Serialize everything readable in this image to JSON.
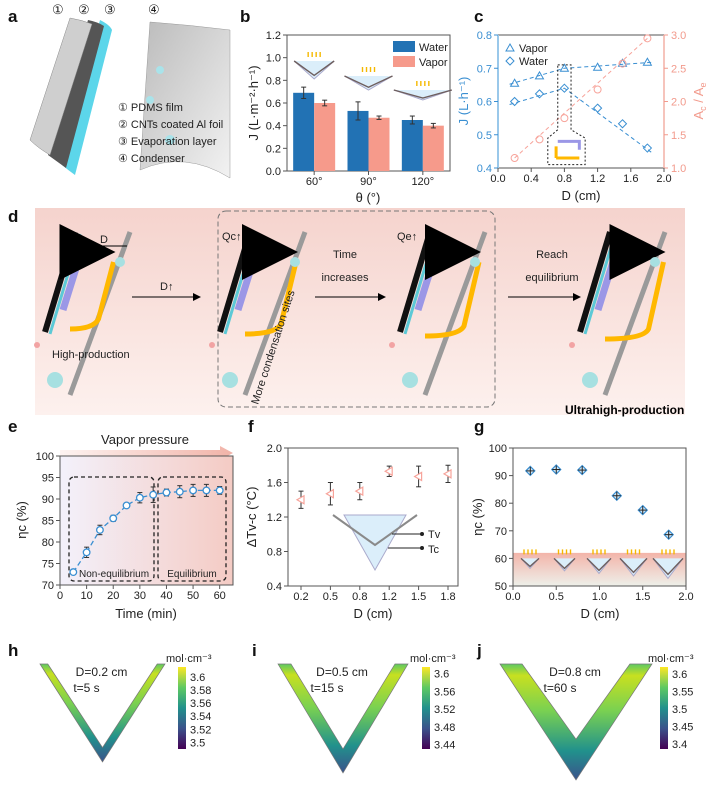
{
  "panels": {
    "a": "a",
    "b": "b",
    "c": "c",
    "d": "d",
    "e": "e",
    "f": "f",
    "g": "g",
    "h": "h",
    "i": "i",
    "j": "j"
  },
  "panel_a": {
    "numbers": [
      "①",
      "②",
      "③",
      "④"
    ],
    "legend": [
      "① PDMS film",
      "② CNTs coated Al foil",
      "③ Evaporation layer",
      "④ Condenser"
    ]
  },
  "panel_d": {
    "D_label": "D",
    "D_up": "D↑",
    "Qc": "Qc↑",
    "Qe": "Qe↑",
    "time1": "Time",
    "time2": "increases",
    "reach1": "Reach",
    "reach2": "equilibrium",
    "sites": "More condensation sites",
    "high": "High-production",
    "ultra": "Ultrahigh-production",
    "colors": {
      "vapor_arrow": "#9b97e6",
      "water_arrow": "#ffb800",
      "absorber": "#111111",
      "evap_layer": "#5cc9d6",
      "condenser": "#9a9a9a"
    }
  },
  "chart_data": [
    {
      "id": "b",
      "type": "bar",
      "categories": [
        "60°",
        "90°",
        "120°"
      ],
      "series": [
        {
          "name": "Water",
          "values": [
            0.69,
            0.53,
            0.45
          ],
          "errors": [
            0.05,
            0.08,
            0.035
          ],
          "color": "#2272b4"
        },
        {
          "name": "Vapor",
          "values": [
            0.6,
            0.47,
            0.4
          ],
          "errors": [
            0.025,
            0.015,
            0.02
          ],
          "color": "#f69a8b"
        }
      ],
      "xlabel": "θ (°)",
      "ylabel": "J (L·m⁻²·h⁻¹)",
      "ylim": [
        0,
        1.2
      ],
      "yticks": [
        "0.0",
        "0.2",
        "0.4",
        "0.6",
        "0.8",
        "1.0",
        "1.2"
      ],
      "legend": "top-right"
    },
    {
      "id": "c",
      "type": "line",
      "x": [
        0.2,
        0.5,
        0.8,
        1.2,
        1.5,
        1.8
      ],
      "series": [
        {
          "name": "Vapor",
          "marker": "triangle",
          "axis": "left",
          "values": [
            0.655,
            0.677,
            0.7,
            0.703,
            0.715,
            0.718
          ],
          "color": "#3a8fd2"
        },
        {
          "name": "Water",
          "marker": "diamond",
          "axis": "left",
          "values": [
            0.6,
            0.623,
            0.64,
            0.58,
            0.533,
            0.46
          ],
          "color": "#3a8fd2"
        },
        {
          "marker": "circle",
          "axis": "right",
          "values": [
            1.15,
            1.43,
            1.75,
            2.18,
            2.57,
            2.95
          ],
          "color": "#f7a39a"
        }
      ],
      "xlabel": "D (cm)",
      "ylabel": "J (L·h⁻¹)",
      "y2label": {
        "a": "A",
        "c": "c",
        "slash": " / A",
        "e": "e"
      },
      "xlim": [
        0,
        2
      ],
      "xticks": [
        "0.0",
        "0.4",
        "0.8",
        "1.2",
        "1.6",
        "2.0"
      ],
      "ylim": [
        0.4,
        0.8
      ],
      "yticks": [
        "0.4",
        "0.5",
        "0.6",
        "0.7",
        "0.8"
      ],
      "y2lim": [
        1.0,
        3.0
      ],
      "y2ticks": [
        "1.0",
        "1.5",
        "2.0",
        "2.5",
        "3.0"
      ],
      "legend": "top-left"
    },
    {
      "id": "e",
      "type": "line",
      "x": [
        5,
        10,
        15,
        20,
        25,
        30,
        35,
        40,
        45,
        50,
        55,
        60
      ],
      "values": [
        73,
        77.6,
        82.8,
        85.5,
        88.5,
        90.3,
        91,
        91.5,
        91.7,
        92,
        92,
        92
      ],
      "errors": [
        0.3,
        1.2,
        1.1,
        0.7,
        0.4,
        1.2,
        1.8,
        0.8,
        1.4,
        1.4,
        1.4,
        0.9
      ],
      "color": "#3a8fd2",
      "title": "Vapor pressure",
      "xlabel": "Time (min)",
      "ylabel": "ηc (%)",
      "xlim": [
        0,
        65
      ],
      "xticks": [
        "0",
        "10",
        "20",
        "30",
        "40",
        "50",
        "60"
      ],
      "ylim": [
        70,
        100
      ],
      "yticks": [
        "70",
        "75",
        "80",
        "85",
        "90",
        "95",
        "100"
      ],
      "regions": [
        "Non-equilibrium",
        "Equilibrium"
      ]
    },
    {
      "id": "f",
      "type": "scatter",
      "categories": [
        "0.2",
        "0.5",
        "0.8",
        "1.2",
        "1.5",
        "1.8"
      ],
      "values": [
        1.4,
        1.47,
        1.5,
        1.73,
        1.67,
        1.7
      ],
      "errors": [
        0.1,
        0.13,
        0.1,
        0.06,
        0.12,
        0.1
      ],
      "color": "#f7a39a",
      "xlabel": "D (cm)",
      "ylabel": "ΔTv-c (°C)",
      "ylim": [
        0.4,
        2.0
      ],
      "yticks": [
        "0.4",
        "0.8",
        "1.2",
        "1.6",
        "2.0"
      ],
      "inset_labels": [
        "Tv",
        "Tc"
      ]
    },
    {
      "id": "g",
      "type": "scatter",
      "x": [
        0.2,
        0.5,
        0.8,
        1.2,
        1.5,
        1.8
      ],
      "values": [
        91.7,
        92.2,
        92,
        82.7,
        77.5,
        68.6
      ],
      "errors": [
        0.8,
        0.8,
        0.8,
        0.8,
        0.8,
        0.8
      ],
      "color": "#3a8fd2",
      "xlabel": "D (cm)",
      "ylabel": "ηc (%)",
      "xlim": [
        0,
        2
      ],
      "xticks": [
        "0.0",
        "0.5",
        "1.0",
        "1.5",
        "2.0"
      ],
      "ylim": [
        50,
        100
      ],
      "yticks": [
        "50",
        "60",
        "70",
        "80",
        "90",
        "100"
      ]
    }
  ],
  "contours": [
    {
      "id": "h",
      "label1": "D=0.2 cm",
      "label2": "t=5 s",
      "unit": "mol·cm⁻³",
      "ticks": [
        "3.6",
        "3.58",
        "3.56",
        "3.54",
        "3.52",
        "3.5"
      ],
      "clim": [
        3.49,
        3.615
      ]
    },
    {
      "id": "i",
      "label1": "D=0.5 cm",
      "label2": "t=15 s",
      "unit": "mol·cm⁻³",
      "ticks": [
        "3.6",
        "3.56",
        "3.52",
        "3.48",
        "3.44"
      ],
      "clim": [
        3.43,
        3.615
      ]
    },
    {
      "id": "j",
      "label1": "D=0.8 cm",
      "label2": "t=60 s",
      "unit": "mol·cm⁻³",
      "ticks": [
        "3.6",
        "3.55",
        "3.5",
        "3.45",
        "3.4"
      ],
      "clim": [
        3.385,
        3.62
      ]
    }
  ],
  "colormap": [
    "#440154",
    "#3b528b",
    "#21918c",
    "#5ec962",
    "#fde725"
  ]
}
